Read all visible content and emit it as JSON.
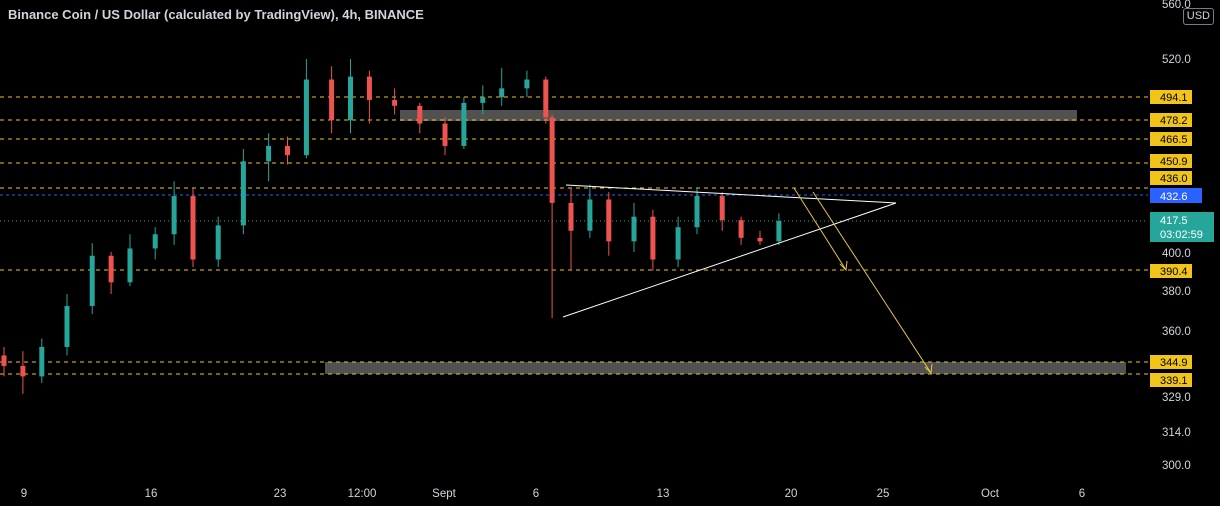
{
  "header": {
    "title": "Binance Coin / US Dollar (calculated by TradingView), 4h, BINANCE",
    "currency": "USD"
  },
  "colors": {
    "background": "#000000",
    "up": "#26a69a",
    "down": "#ef5350",
    "level": "#f0c419",
    "current_price": "#2962ff",
    "last_price": "#26a69a",
    "zone": "#5a5a5a",
    "triangle": "#ffffff",
    "arrow": "#e3c744"
  },
  "chart_data": {
    "type": "candlestick",
    "symbol": "BNB/USD",
    "interval": "4h",
    "ylim": [
      296,
      560
    ],
    "y_ticks": [
      "560.0",
      "520.0",
      "400.0",
      "380.0",
      "360.0",
      "329.0",
      "314.0",
      "300.0"
    ],
    "x_ticks": [
      "9",
      "16",
      "23",
      "12:00",
      "Sept",
      "6",
      "13",
      "20",
      "25",
      "Oct",
      "6"
    ],
    "horizontal_levels": [
      "494.1",
      "478.2",
      "466.5",
      "450.9",
      "436.0",
      "390.4",
      "344.9",
      "339.1"
    ],
    "current_price_line": "432.6",
    "last_price": "417.5",
    "countdown": "03:02:59",
    "zones": [
      {
        "from": 475,
        "to": 481
      },
      {
        "from": 339,
        "to": 345
      }
    ],
    "candles_approx": [
      {
        "t": 0,
        "o": 348,
        "h": 352,
        "l": 338,
        "c": 343
      },
      {
        "t": 3,
        "o": 343,
        "h": 350,
        "l": 330,
        "c": 338
      },
      {
        "t": 6,
        "o": 338,
        "h": 356,
        "l": 335,
        "c": 352
      },
      {
        "t": 10,
        "o": 352,
        "h": 378,
        "l": 348,
        "c": 372
      },
      {
        "t": 14,
        "o": 372,
        "h": 405,
        "l": 368,
        "c": 398
      },
      {
        "t": 17,
        "o": 398,
        "h": 400,
        "l": 378,
        "c": 384
      },
      {
        "t": 20,
        "o": 384,
        "h": 410,
        "l": 382,
        "c": 402
      },
      {
        "t": 24,
        "o": 402,
        "h": 414,
        "l": 396,
        "c": 410
      },
      {
        "t": 27,
        "o": 410,
        "h": 440,
        "l": 404,
        "c": 432
      },
      {
        "t": 30,
        "o": 432,
        "h": 436,
        "l": 392,
        "c": 396
      },
      {
        "t": 34,
        "o": 396,
        "h": 420,
        "l": 392,
        "c": 415
      },
      {
        "t": 38,
        "o": 415,
        "h": 460,
        "l": 410,
        "c": 452
      },
      {
        "t": 42,
        "o": 452,
        "h": 470,
        "l": 440,
        "c": 462
      },
      {
        "t": 45,
        "o": 462,
        "h": 468,
        "l": 450,
        "c": 456
      },
      {
        "t": 48,
        "o": 456,
        "h": 520,
        "l": 454,
        "c": 506
      },
      {
        "t": 52,
        "o": 506,
        "h": 515,
        "l": 470,
        "c": 478
      },
      {
        "t": 55,
        "o": 478,
        "h": 520,
        "l": 470,
        "c": 508
      },
      {
        "t": 58,
        "o": 508,
        "h": 512,
        "l": 476,
        "c": 492
      },
      {
        "t": 62,
        "o": 492,
        "h": 500,
        "l": 482,
        "c": 488
      },
      {
        "t": 66,
        "o": 488,
        "h": 490,
        "l": 470,
        "c": 476
      },
      {
        "t": 70,
        "o": 476,
        "h": 480,
        "l": 456,
        "c": 462
      },
      {
        "t": 73,
        "o": 462,
        "h": 494,
        "l": 460,
        "c": 490
      },
      {
        "t": 76,
        "o": 490,
        "h": 502,
        "l": 482,
        "c": 494
      },
      {
        "t": 79,
        "o": 494,
        "h": 514,
        "l": 488,
        "c": 500
      },
      {
        "t": 83,
        "o": 500,
        "h": 512,
        "l": 494,
        "c": 506
      },
      {
        "t": 86,
        "o": 506,
        "h": 508,
        "l": 476,
        "c": 480
      },
      {
        "t": 87,
        "o": 480,
        "h": 482,
        "l": 366,
        "c": 428
      },
      {
        "t": 90,
        "o": 428,
        "h": 436,
        "l": 390,
        "c": 412
      },
      {
        "t": 93,
        "o": 412,
        "h": 438,
        "l": 408,
        "c": 430
      },
      {
        "t": 96,
        "o": 430,
        "h": 434,
        "l": 398,
        "c": 406
      },
      {
        "t": 100,
        "o": 406,
        "h": 428,
        "l": 400,
        "c": 420
      },
      {
        "t": 103,
        "o": 420,
        "h": 424,
        "l": 390,
        "c": 396
      },
      {
        "t": 107,
        "o": 396,
        "h": 420,
        "l": 392,
        "c": 414
      },
      {
        "t": 110,
        "o": 414,
        "h": 436,
        "l": 410,
        "c": 432
      },
      {
        "t": 114,
        "o": 432,
        "h": 434,
        "l": 412,
        "c": 418
      },
      {
        "t": 117,
        "o": 418,
        "h": 420,
        "l": 404,
        "c": 408
      },
      {
        "t": 120,
        "o": 408,
        "h": 412,
        "l": 404,
        "c": 406
      },
      {
        "t": 123,
        "o": 406,
        "h": 422,
        "l": 404,
        "c": 417.5
      }
    ]
  }
}
